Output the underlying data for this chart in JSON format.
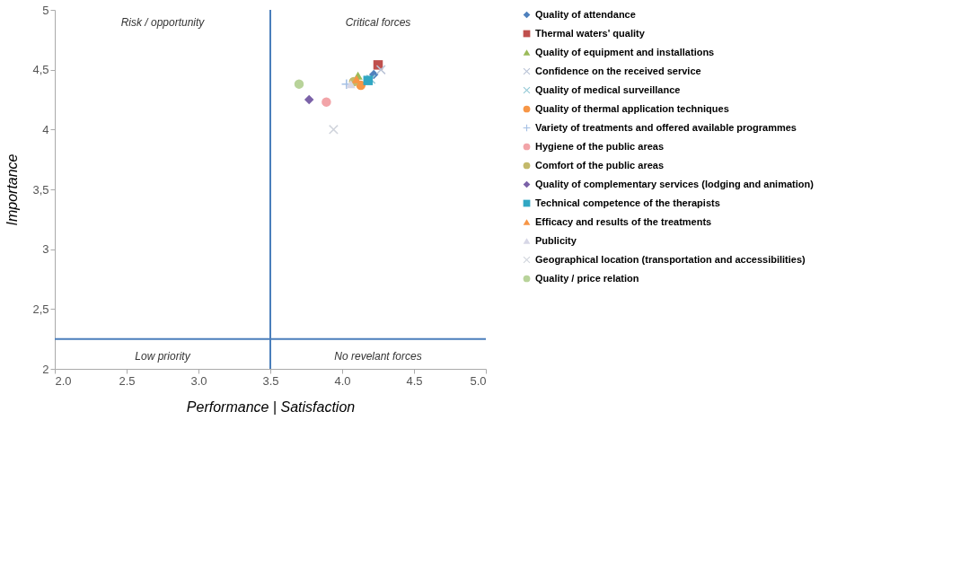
{
  "chart_data": {
    "type": "scatter",
    "xlabel": "Performance | Satisfaction",
    "ylabel": "Importance",
    "xlim": [
      2,
      5
    ],
    "xticks": [
      {
        "value": 2,
        "label": "2.0"
      },
      {
        "value": 2.5,
        "label": "2.5"
      },
      {
        "value": 3,
        "label": "3.0"
      },
      {
        "value": 3.5,
        "label": "3.5"
      },
      {
        "value": 4,
        "label": "4.0"
      },
      {
        "value": 4.5,
        "label": "4.5"
      },
      {
        "value": 5,
        "label": "5.0"
      }
    ],
    "ylim": [
      2,
      5
    ],
    "yticks": [
      2,
      {
        "value": 2.5,
        "label": "2,5"
      },
      3,
      {
        "value": 3.5,
        "label": "3,5"
      },
      4,
      {
        "value": 4.5,
        "label": "4,5"
      },
      5
    ],
    "grid": false,
    "legend": "right",
    "ref_lines": [
      {
        "axis": "x",
        "value": 3.5,
        "color": "#4a7ebb"
      },
      {
        "axis": "y",
        "value": 2.25,
        "color": "#4a7ebb"
      }
    ],
    "annotations": [
      "Risk / opportunity",
      "Critical forces",
      "Low priority",
      "No revelant forces"
    ],
    "series": [
      {
        "name": "Quality of attendance",
        "color": "#4f81bd",
        "marker": "diamond",
        "x": [
          4.22
        ],
        "values": [
          4.46
        ]
      },
      {
        "name": "Thermal waters' quality",
        "color": "#c0504d",
        "marker": "square",
        "x": [
          4.25
        ],
        "values": [
          4.54
        ]
      },
      {
        "name": "Quality of equipment and installations",
        "color": "#9bbb59",
        "marker": "triangle",
        "x": [
          4.11
        ],
        "values": [
          4.45
        ]
      },
      {
        "name": "Confidence on the received service",
        "color": "#b9c3d6",
        "marker": "cross",
        "x": [
          4.27
        ],
        "values": [
          4.5
        ]
      },
      {
        "name": "Quality of medical surveillance",
        "color": "#93c9d6",
        "marker": "cross",
        "x": [
          4.2
        ],
        "values": [
          4.42
        ]
      },
      {
        "name": "Quality of thermal application techniques",
        "color": "#f79646",
        "marker": "circle",
        "x": [
          4.13
        ],
        "values": [
          4.37
        ]
      },
      {
        "name": "Variety of treatments and offered available programmes",
        "color": "#a5c0e4",
        "marker": "plus",
        "x": [
          4.03
        ],
        "values": [
          4.38
        ]
      },
      {
        "name": "Hygiene of the public areas",
        "color": "#f2a4a8",
        "x": [
          3.89
        ],
        "values": [
          4.23
        ]
      },
      {
        "name": "Comfort of the public areas",
        "color": "#c3b96b",
        "x": [
          4.08
        ],
        "values": [
          4.4
        ]
      },
      {
        "name": "Quality of complementary services (lodging and animation)",
        "color": "#7b62a8",
        "marker": "diamond",
        "x": [
          3.77
        ],
        "values": [
          4.25
        ]
      },
      {
        "name": "Technical competence of the therapists",
        "color": "#31a7c3",
        "marker": "square",
        "x": [
          4.18
        ],
        "values": [
          4.41
        ]
      },
      {
        "name": "Efficacy and results of the treatments",
        "color": "#f79646",
        "marker": "triangle",
        "x": [
          4.1
        ],
        "values": [
          4.42
        ]
      },
      {
        "name": "Publicity",
        "color": "#d7d7e6",
        "marker": "triangle",
        "x": [
          4.06
        ],
        "values": [
          4.38
        ]
      },
      {
        "name": "Geographical location (transportation and accessibilities)",
        "color": "#d0d4dc",
        "marker": "cross",
        "x": [
          3.94
        ],
        "values": [
          4.0
        ]
      },
      {
        "name": "Quality / price relation",
        "color": "#b8d39a",
        "marker": "circle",
        "x": [
          3.7
        ],
        "values": [
          4.38
        ]
      }
    ]
  }
}
